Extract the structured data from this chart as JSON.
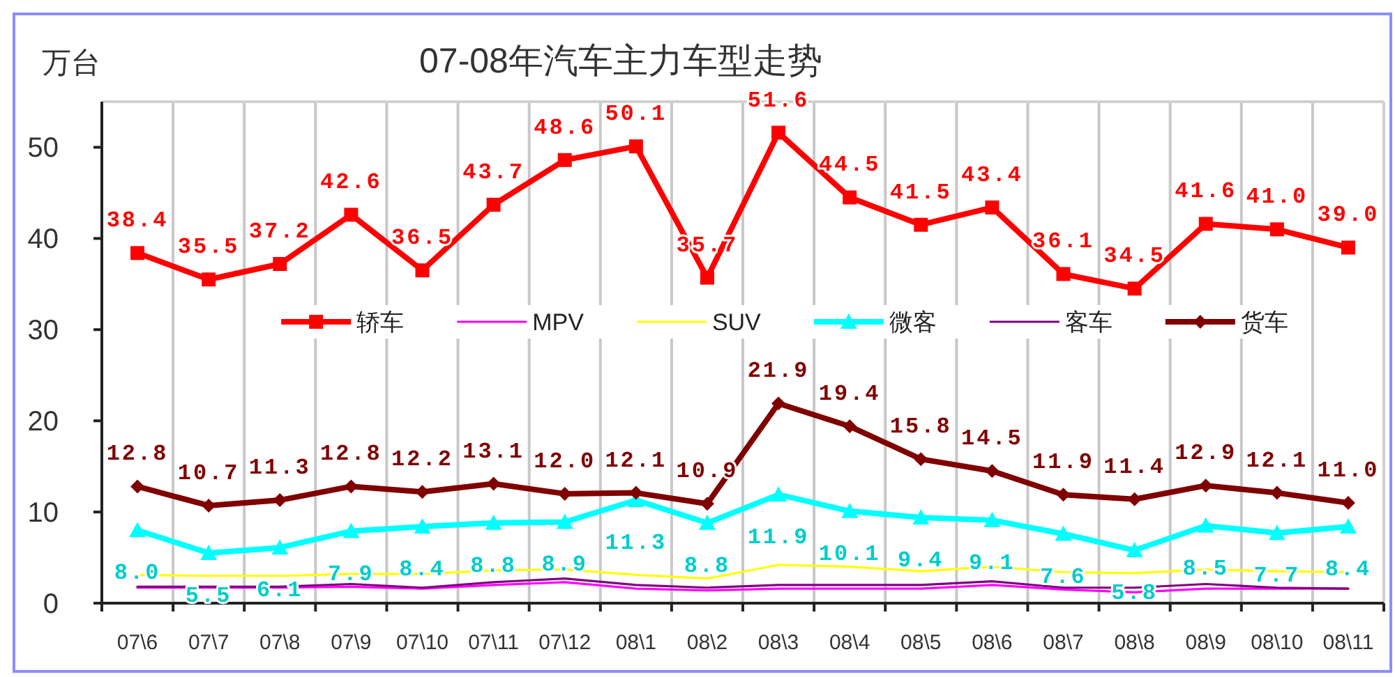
{
  "chart_data": {
    "type": "line",
    "title": "07-08年汽车主力车型走势",
    "ylabel": "万台",
    "categories": [
      "07\\6",
      "07\\7",
      "07\\8",
      "07\\9",
      "07\\10",
      "07\\11",
      "07\\12",
      "08\\1",
      "08\\2",
      "08\\3",
      "08\\4",
      "08\\5",
      "08\\6",
      "08\\7",
      "08\\8",
      "08\\9",
      "08\\10",
      "08\\11"
    ],
    "ylim": [
      0,
      55
    ],
    "yticks": [
      0,
      10,
      20,
      30,
      40,
      50
    ],
    "grid": "x",
    "legend": "center",
    "series": [
      {
        "name": "轿车",
        "color": "#ff0000",
        "marker": "square",
        "values": [
          38.4,
          35.5,
          37.2,
          42.6,
          36.5,
          43.7,
          48.6,
          50.1,
          35.7,
          51.6,
          44.5,
          41.5,
          43.4,
          36.1,
          34.5,
          41.6,
          41.0,
          39.0
        ],
        "value_labels": [
          "38.4",
          "35.5",
          "37.2",
          "42.6",
          "36.5",
          "43.7",
          "48.6",
          "50.1",
          "35.7",
          "51.6",
          "44.5",
          "41.5",
          "43.4",
          "36.1",
          "34.5",
          "41.6",
          "41.0",
          "39.0"
        ]
      },
      {
        "name": "MPV",
        "color": "#ff00ff",
        "marker": "none",
        "values": [
          1.7,
          1.7,
          1.7,
          1.8,
          1.6,
          2.0,
          2.3,
          1.6,
          1.4,
          1.6,
          1.6,
          1.6,
          2.0,
          1.5,
          1.2,
          1.6,
          1.6,
          1.6
        ]
      },
      {
        "name": "SUV",
        "color": "#ffff00",
        "marker": "none",
        "values": [
          3.1,
          3.0,
          3.0,
          3.2,
          3.2,
          3.6,
          3.7,
          3.1,
          2.7,
          4.2,
          4.0,
          3.5,
          4.0,
          3.4,
          3.3,
          3.7,
          3.5,
          3.4
        ]
      },
      {
        "name": "微客",
        "color": "#00ffff",
        "marker": "triangle",
        "values": [
          8.0,
          5.5,
          6.1,
          7.9,
          8.4,
          8.8,
          8.9,
          11.3,
          8.8,
          11.9,
          10.1,
          9.4,
          9.1,
          7.6,
          5.8,
          8.5,
          7.7,
          8.4
        ],
        "value_labels": [
          "8.0",
          "5.5",
          "6.1",
          "7.9",
          "8.4",
          "8.8",
          "8.9",
          "11.3",
          "8.8",
          "11.9",
          "10.1",
          "9.4",
          "9.1",
          "7.6",
          "5.8",
          "8.5",
          "7.7",
          "8.4"
        ]
      },
      {
        "name": "客车",
        "color": "#800080",
        "marker": "none",
        "values": [
          1.8,
          1.8,
          1.8,
          2.1,
          1.7,
          2.3,
          2.7,
          2.0,
          1.7,
          2.0,
          2.0,
          2.0,
          2.4,
          1.7,
          1.7,
          2.1,
          1.7,
          1.6
        ]
      },
      {
        "name": "货车",
        "color": "#800000",
        "marker": "diamond",
        "values": [
          12.8,
          10.7,
          11.3,
          12.8,
          12.2,
          13.1,
          12.0,
          12.1,
          10.9,
          21.9,
          19.4,
          15.8,
          14.5,
          11.9,
          11.4,
          12.9,
          12.1,
          11.0
        ],
        "value_labels": [
          "12.8",
          "10.7",
          "11.3",
          "12.8",
          "12.2",
          "13.1",
          "12.0",
          "12.1",
          "10.9",
          "21.9",
          "19.4",
          "15.8",
          "14.5",
          "11.9",
          "11.4",
          "12.9",
          "12.1",
          "11.0"
        ]
      }
    ]
  }
}
